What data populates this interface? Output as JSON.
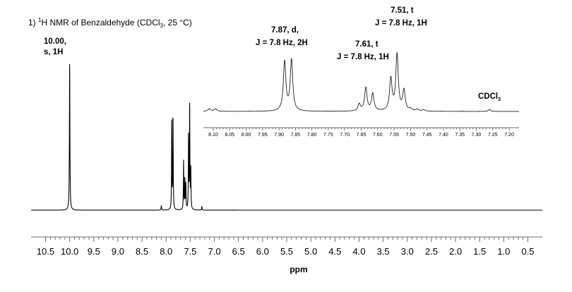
{
  "chart_data": {
    "type": "line",
    "title_prefix": "1) ",
    "title_sup": "1",
    "title_main": "H NMR of Benzaldehyde (CDCl",
    "title_sub": "3",
    "title_suffix": ", 25 °C)",
    "xlabel": "ppm",
    "ylabel": "",
    "x_reversed": true,
    "xlim": [
      10.8,
      0.2
    ],
    "x_ticks": [
      "10.5",
      "10.0",
      "9.5",
      "9.0",
      "8.5",
      "8.0",
      "7.5",
      "7.0",
      "6.5",
      "6.0",
      "5.5",
      "5.0",
      "4.5",
      "4.0",
      "3.5",
      "3.0",
      "2.5",
      "2.0",
      "1.5",
      "1.0",
      "0.5"
    ],
    "grid": false,
    "line_color": "#000000",
    "peaks": [
      {
        "ppm": 10.0,
        "intensity": 1.0,
        "width": 0.006
      },
      {
        "ppm": 8.1,
        "intensity": 0.03,
        "width": 0.006
      },
      {
        "ppm": 7.883,
        "intensity": 0.6,
        "width": 0.005
      },
      {
        "ppm": 7.857,
        "intensity": 0.62,
        "width": 0.005
      },
      {
        "ppm": 7.638,
        "intensity": 0.33,
        "width": 0.005
      },
      {
        "ppm": 7.612,
        "intensity": 0.2,
        "width": 0.005
      },
      {
        "ppm": 7.591,
        "intensity": 0.17,
        "width": 0.005
      },
      {
        "ppm": 7.535,
        "intensity": 0.49,
        "width": 0.005
      },
      {
        "ppm": 7.512,
        "intensity": 0.7,
        "width": 0.005
      },
      {
        "ppm": 7.489,
        "intensity": 0.27,
        "width": 0.005
      },
      {
        "ppm": 7.26,
        "intensity": 0.025,
        "width": 0.005
      }
    ],
    "inset": {
      "xlim": [
        8.13,
        7.17
      ],
      "x_ticks": [
        "8.10",
        "8.05",
        "8.00",
        "7.95",
        "7.90",
        "7.85",
        "7.80",
        "7.75",
        "7.70",
        "7.65",
        "7.60",
        "7.55",
        "7.50",
        "7.45",
        "7.40",
        "7.35",
        "7.30",
        "7.25",
        "7.20"
      ],
      "peaks": [
        {
          "ppm": 8.112,
          "intensity": 0.045,
          "width": 0.005
        },
        {
          "ppm": 8.093,
          "intensity": 0.045,
          "width": 0.005
        },
        {
          "ppm": 7.883,
          "intensity": 0.85,
          "width": 0.0045
        },
        {
          "ppm": 7.862,
          "intensity": 0.88,
          "width": 0.0045
        },
        {
          "ppm": 7.656,
          "intensity": 0.12,
          "width": 0.0045
        },
        {
          "ppm": 7.636,
          "intensity": 0.4,
          "width": 0.0045
        },
        {
          "ppm": 7.615,
          "intensity": 0.3,
          "width": 0.0045
        },
        {
          "ppm": 7.56,
          "intensity": 0.55,
          "width": 0.0045
        },
        {
          "ppm": 7.541,
          "intensity": 0.97,
          "width": 0.0045
        },
        {
          "ppm": 7.52,
          "intensity": 0.35,
          "width": 0.0045
        },
        {
          "ppm": 7.5,
          "intensity": 0.03,
          "width": 0.005
        },
        {
          "ppm": 7.48,
          "intensity": 0.03,
          "width": 0.005
        },
        {
          "ppm": 7.46,
          "intensity": 0.025,
          "width": 0.005
        },
        {
          "ppm": 7.26,
          "intensity": 0.035,
          "width": 0.004
        }
      ]
    },
    "annotations": [
      {
        "id": "ann-10",
        "line1": "10.00,",
        "line2": "s, 1H"
      },
      {
        "id": "ann-787",
        "line1": "7.87, d,",
        "line2": "J = 7.8 Hz, 2H"
      },
      {
        "id": "ann-761",
        "line1": "7.61, t",
        "line2": "J = 7.8 Hz, 1H"
      },
      {
        "id": "ann-751",
        "line1": "7.51, t",
        "line2": "J = 7.8 Hz, 1H"
      }
    ],
    "solvent_label_main": "CDCl",
    "solvent_label_sub": "3"
  }
}
